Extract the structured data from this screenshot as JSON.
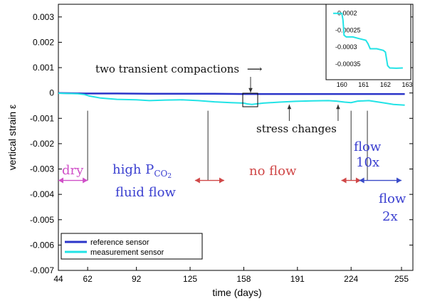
{
  "chart_data": {
    "type": "line",
    "xlabel": "time  (days)",
    "ylabel": "vertical strain ε",
    "xlim": [
      44,
      262
    ],
    "ylim": [
      -0.007,
      0.0035
    ],
    "x_ticks": [
      "44",
      "62",
      "92",
      "125",
      "158",
      "191",
      "224",
      "255"
    ],
    "y_ticks": [
      "0.003",
      "0.002",
      "0.001",
      "0",
      "-0.001",
      "-0.002",
      "-0.003",
      "-0.004",
      "-0.005",
      "-0.006",
      "-0.007"
    ],
    "legend": {
      "placement": "bottom-left",
      "entries": [
        "reference sensor",
        "measurement sensor"
      ]
    },
    "series": [
      {
        "name": "reference sensor",
        "color": "#2b35c9",
        "x": [
          44,
          60,
          80,
          100,
          120,
          140,
          158,
          180,
          200,
          220,
          240,
          257
        ],
        "y": [
          0.0,
          -2e-05,
          -2e-05,
          -3e-05,
          -3e-05,
          -3e-05,
          -4e-05,
          -4e-05,
          -4e-05,
          -4e-05,
          -4e-05,
          -4e-05
        ]
      },
      {
        "name": "measurement sensor",
        "color": "#22e3e6",
        "x": [
          44,
          50,
          56,
          60,
          63,
          70,
          80,
          92,
          100,
          110,
          120,
          130,
          140,
          150,
          158,
          160,
          163,
          170,
          180,
          190,
          200,
          210,
          215,
          220,
          224,
          228,
          235,
          240,
          245,
          250,
          257
        ],
        "y": [
          -1e-05,
          -2e-05,
          -3e-05,
          -6e-05,
          -0.00012,
          -0.0002,
          -0.00025,
          -0.00027,
          -0.0003,
          -0.00028,
          -0.00027,
          -0.0003,
          -0.00035,
          -0.00038,
          -0.0004,
          -0.00043,
          -0.00045,
          -0.0004,
          -0.00036,
          -0.00033,
          -0.00031,
          -0.0003,
          -0.00032,
          -0.00036,
          -0.00038,
          -0.00032,
          -0.0003,
          -0.00035,
          -0.0004,
          -0.00045,
          -0.00048
        ]
      }
    ],
    "annotations": {
      "transient": "two transient compactions",
      "transient_arrow": "⟶",
      "stress": "stress changes",
      "dry": "dry",
      "high_pco2": "high P",
      "high_pco2_sub": "CO",
      "high_pco2_subsub": "2",
      "fluid_flow": "fluid flow",
      "no_flow": "no flow",
      "flow10_a": "flow",
      "flow10_b": "10x",
      "flow2_a": "flow",
      "flow2_b": "2x"
    },
    "phase_markers_x": [
      62,
      136,
      224,
      234
    ],
    "stress_arrows_x": [
      186,
      216
    ],
    "period_arrows": [
      {
        "from": 44,
        "to": 62,
        "color": "#d050c8"
      },
      {
        "from": 128,
        "to": 146,
        "color": "#d04848"
      },
      {
        "from": 218,
        "to": 230,
        "color": "#d04848"
      },
      {
        "from": 229,
        "to": 255,
        "color": "#3a4bc8"
      }
    ],
    "inset": {
      "xlim": [
        159.6,
        163
      ],
      "ylim": [
        -0.00038,
        -0.00019
      ],
      "x_ticks": [
        "160",
        "161",
        "162",
        "163"
      ],
      "y_ticks": [
        "-0.0002",
        "-0.00025",
        "-0.0003",
        "-0.00035"
      ],
      "series": {
        "color": "#22e3e6",
        "x": [
          159.6,
          159.9,
          160.0,
          160.05,
          160.1,
          160.2,
          160.5,
          160.8,
          161.1,
          161.2,
          161.3,
          161.6,
          161.9,
          162.0,
          162.1,
          162.2,
          162.5,
          162.8
        ],
        "y": [
          -0.0002,
          -0.0002,
          -0.0002,
          -0.00022,
          -0.000265,
          -0.00027,
          -0.00027,
          -0.000275,
          -0.00028,
          -0.00029,
          -0.000305,
          -0.000305,
          -0.00031,
          -0.000315,
          -0.000355,
          -0.000362,
          -0.000363,
          -0.000362
        ]
      }
    }
  }
}
